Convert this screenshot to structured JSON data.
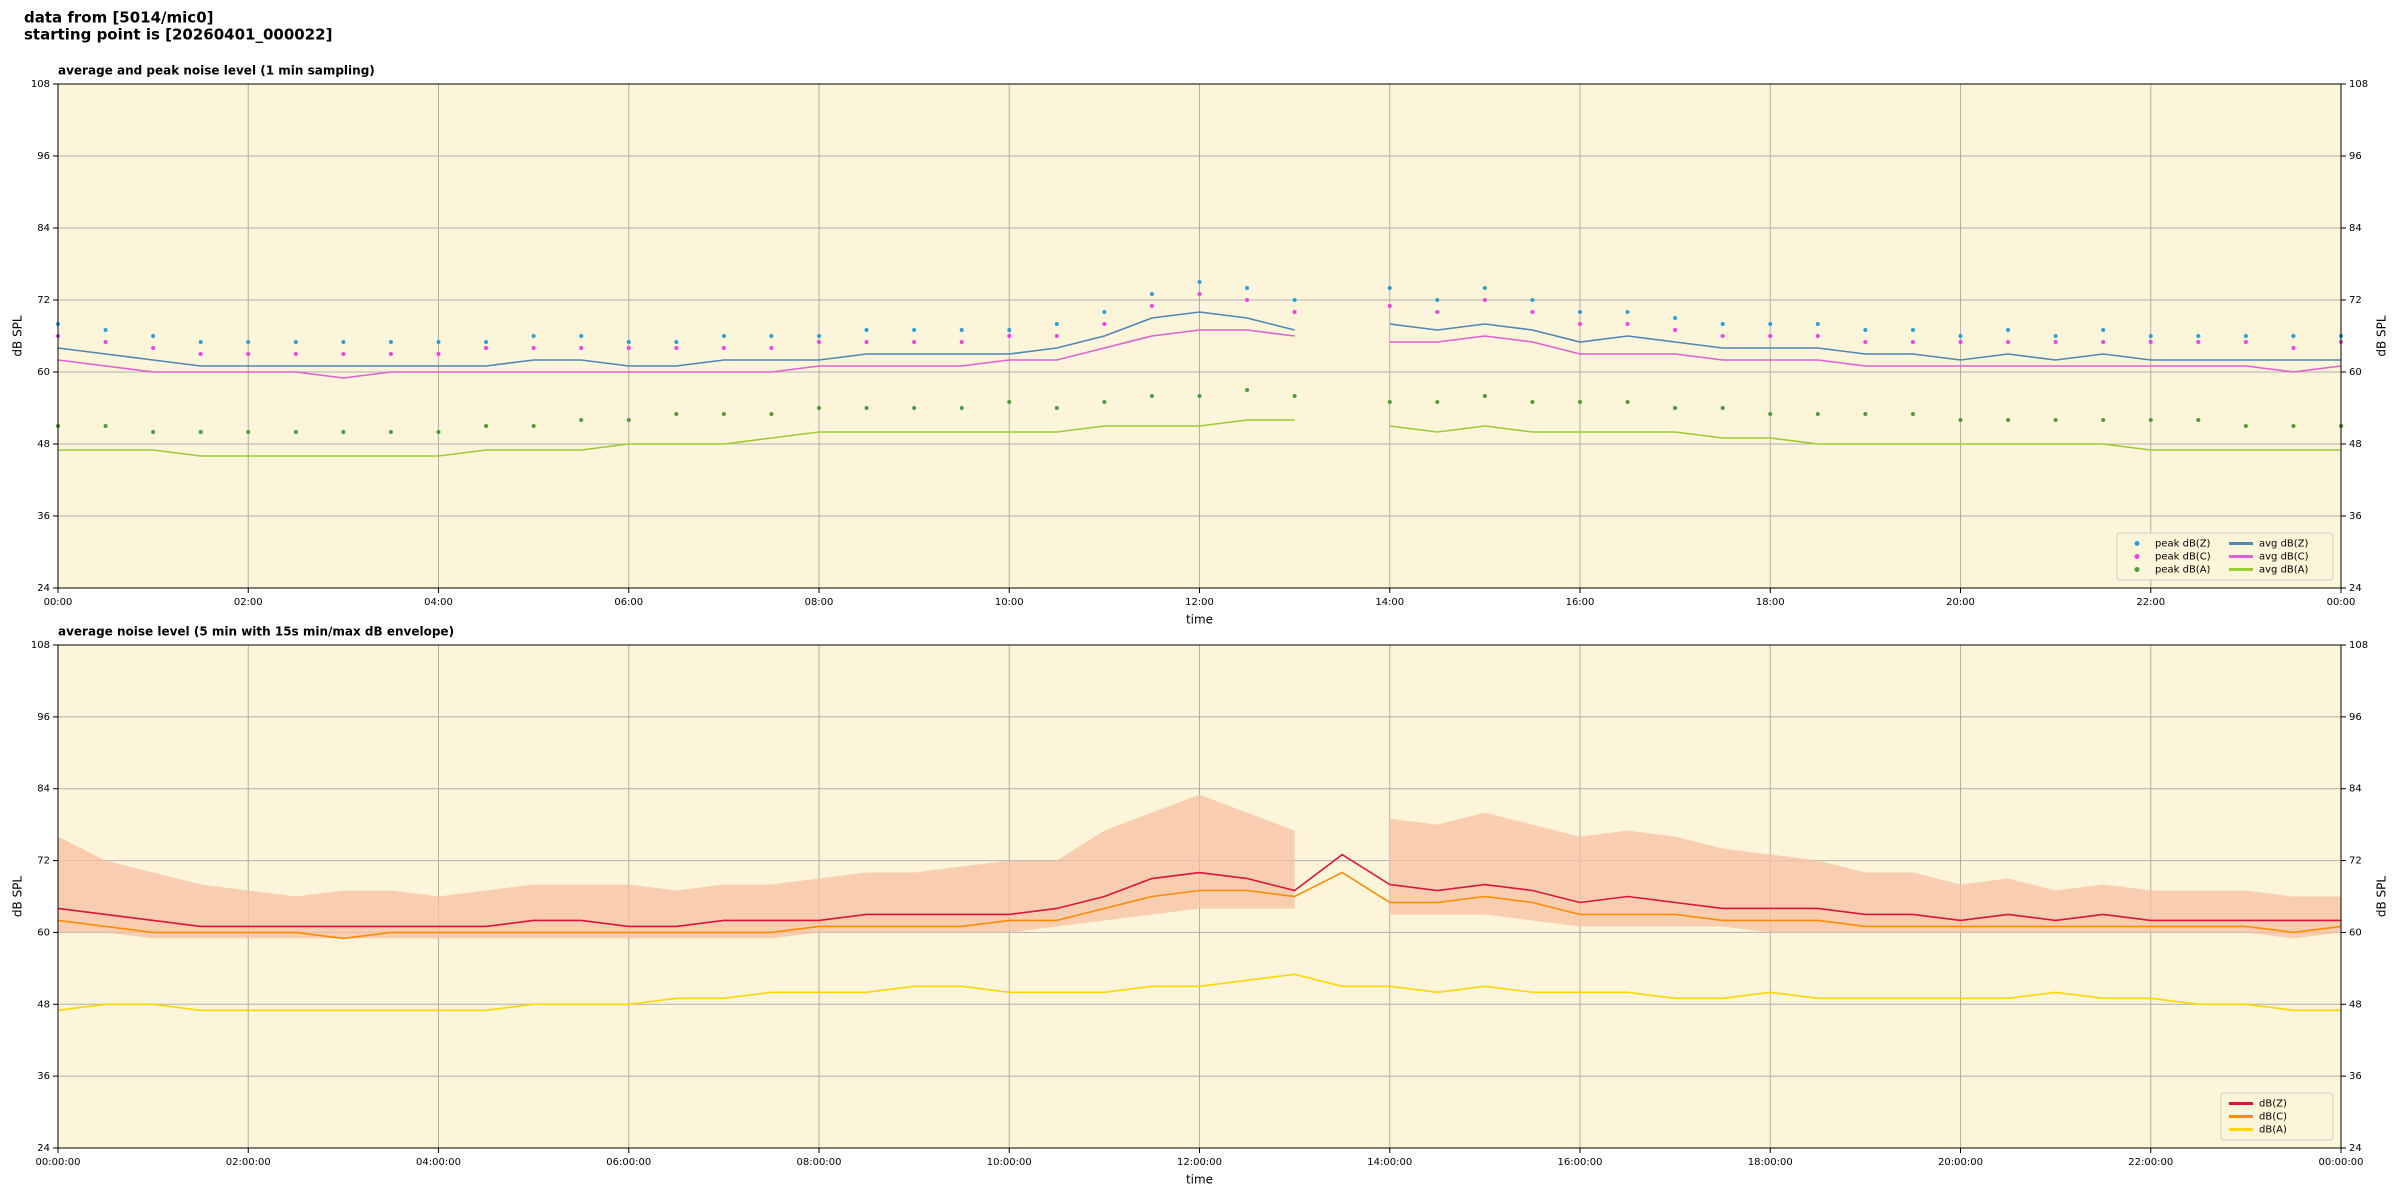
{
  "header": {
    "source": "data from [5014/mic0]",
    "start": "starting point is [20260401_000022]"
  },
  "chart_data": [
    {
      "type": "line",
      "title": "average and peak noise level (1 min sampling)",
      "xlabel": "time",
      "ylabel": "dB SPL",
      "facecolor": "#fdf5d9",
      "grid": true,
      "legend": "lower right",
      "legend_columns": 2,
      "xlim": [
        0,
        24
      ],
      "ylim": [
        24,
        108
      ],
      "xticks": [
        {
          "value": 0,
          "label": "00:00"
        },
        {
          "value": 2,
          "label": "02:00"
        },
        {
          "value": 4,
          "label": "04:00"
        },
        {
          "value": 6,
          "label": "06:00"
        },
        {
          "value": 8,
          "label": "08:00"
        },
        {
          "value": 10,
          "label": "10:00"
        },
        {
          "value": 12,
          "label": "12:00"
        },
        {
          "value": 14,
          "label": "14:00"
        },
        {
          "value": 16,
          "label": "16:00"
        },
        {
          "value": 18,
          "label": "18:00"
        },
        {
          "value": 20,
          "label": "20:00"
        },
        {
          "value": 22,
          "label": "22:00"
        },
        {
          "value": 24,
          "label": "00:00"
        }
      ],
      "yticks": [
        24,
        36,
        48,
        60,
        72,
        84,
        96,
        108
      ],
      "x": [
        0,
        0.5,
        1,
        1.5,
        2,
        2.5,
        3,
        3.5,
        4,
        4.5,
        5,
        5.5,
        6,
        6.5,
        7,
        7.5,
        8,
        8.5,
        9,
        9.5,
        10,
        10.5,
        11,
        11.5,
        12,
        12.5,
        13,
        13.5,
        14,
        14.5,
        15,
        15.5,
        16,
        16.5,
        17,
        17.5,
        18,
        18.5,
        19,
        19.5,
        20,
        20.5,
        21,
        21.5,
        22,
        22.5,
        23,
        23.5,
        24
      ],
      "series": [
        {
          "name": "peak dB(Z)",
          "mark": "dot",
          "color": "#2a9fd8",
          "values": [
            68,
            67,
            66,
            65,
            65,
            65,
            65,
            65,
            65,
            65,
            66,
            66,
            65,
            65,
            66,
            66,
            66,
            67,
            67,
            67,
            67,
            68,
            70,
            73,
            75,
            74,
            72,
            null,
            74,
            72,
            74,
            72,
            70,
            70,
            69,
            68,
            68,
            68,
            67,
            67,
            66,
            67,
            66,
            67,
            66,
            66,
            66,
            66,
            66
          ]
        },
        {
          "name": "peak dB(C)",
          "mark": "dot",
          "color": "#f040e8",
          "values": [
            66,
            65,
            64,
            63,
            63,
            63,
            63,
            63,
            63,
            64,
            64,
            64,
            64,
            64,
            64,
            64,
            65,
            65,
            65,
            65,
            66,
            66,
            68,
            71,
            73,
            72,
            70,
            null,
            71,
            70,
            72,
            70,
            68,
            68,
            67,
            66,
            66,
            66,
            65,
            65,
            65,
            65,
            65,
            65,
            65,
            65,
            65,
            64,
            65
          ]
        },
        {
          "name": "peak dB(A)",
          "mark": "dot",
          "color": "#4f9a3c",
          "values": [
            51,
            51,
            50,
            50,
            50,
            50,
            50,
            50,
            50,
            51,
            51,
            52,
            52,
            53,
            53,
            53,
            54,
            54,
            54,
            54,
            55,
            54,
            55,
            56,
            56,
            57,
            56,
            null,
            55,
            55,
            56,
            55,
            55,
            55,
            54,
            54,
            53,
            53,
            53,
            53,
            52,
            52,
            52,
            52,
            52,
            52,
            51,
            51,
            51
          ]
        },
        {
          "name": "avg dB(Z)",
          "mark": "line",
          "color": "#4f86b2",
          "values": [
            64,
            63,
            62,
            61,
            61,
            61,
            61,
            61,
            61,
            61,
            62,
            62,
            61,
            61,
            62,
            62,
            62,
            63,
            63,
            63,
            63,
            64,
            66,
            69,
            70,
            69,
            67,
            null,
            68,
            67,
            68,
            67,
            65,
            66,
            65,
            64,
            64,
            64,
            63,
            63,
            62,
            63,
            62,
            63,
            62,
            62,
            62,
            62,
            62
          ]
        },
        {
          "name": "avg dB(C)",
          "mark": "line",
          "color": "#e05fd2",
          "values": [
            62,
            61,
            60,
            60,
            60,
            60,
            59,
            60,
            60,
            60,
            60,
            60,
            60,
            60,
            60,
            60,
            61,
            61,
            61,
            61,
            62,
            62,
            64,
            66,
            67,
            67,
            66,
            null,
            65,
            65,
            66,
            65,
            63,
            63,
            63,
            62,
            62,
            62,
            61,
            61,
            61,
            61,
            61,
            61,
            61,
            61,
            61,
            60,
            61
          ]
        },
        {
          "name": "avg dB(A)",
          "mark": "line",
          "color": "#9acd32",
          "values": [
            47,
            47,
            47,
            46,
            46,
            46,
            46,
            46,
            46,
            47,
            47,
            47,
            48,
            48,
            48,
            49,
            50,
            50,
            50,
            50,
            50,
            50,
            51,
            51,
            51,
            52,
            52,
            null,
            51,
            50,
            51,
            50,
            50,
            50,
            50,
            49,
            49,
            48,
            48,
            48,
            48,
            48,
            48,
            48,
            47,
            47,
            47,
            47,
            47
          ]
        }
      ]
    },
    {
      "type": "line",
      "title": "average noise level (5 min with 15s min/max dB envelope)",
      "xlabel": "time",
      "ylabel": "dB SPL",
      "facecolor": "#fdf5d9",
      "grid": true,
      "legend": "lower right",
      "legend_columns": 1,
      "xlim": [
        0,
        24
      ],
      "ylim": [
        24,
        108
      ],
      "xticks": [
        {
          "value": 0,
          "label": "00:00:00"
        },
        {
          "value": 2,
          "label": "02:00:00"
        },
        {
          "value": 4,
          "label": "04:00:00"
        },
        {
          "value": 6,
          "label": "06:00:00"
        },
        {
          "value": 8,
          "label": "08:00:00"
        },
        {
          "value": 10,
          "label": "10:00:00"
        },
        {
          "value": 12,
          "label": "12:00:00"
        },
        {
          "value": 14,
          "label": "14:00:00"
        },
        {
          "value": 16,
          "label": "16:00:00"
        },
        {
          "value": 18,
          "label": "18:00:00"
        },
        {
          "value": 20,
          "label": "20:00:00"
        },
        {
          "value": 22,
          "label": "22:00:00"
        },
        {
          "value": 24,
          "label": "00:00:00"
        }
      ],
      "yticks": [
        24,
        36,
        48,
        60,
        72,
        84,
        96,
        108
      ],
      "x": [
        0,
        0.5,
        1,
        1.5,
        2,
        2.5,
        3,
        3.5,
        4,
        4.5,
        5,
        5.5,
        6,
        6.5,
        7,
        7.5,
        8,
        8.5,
        9,
        9.5,
        10,
        10.5,
        11,
        11.5,
        12,
        12.5,
        13,
        13.5,
        14,
        14.5,
        15,
        15.5,
        16,
        16.5,
        17,
        17.5,
        18,
        18.5,
        19,
        19.5,
        20,
        20.5,
        21,
        21.5,
        22,
        22.5,
        23,
        23.5,
        24
      ],
      "envelope": {
        "color": "#f7bfa2",
        "low": [
          60,
          60,
          59,
          59,
          59,
          59,
          59,
          59,
          59,
          59,
          59,
          59,
          59,
          59,
          59,
          59,
          60,
          60,
          60,
          60,
          60,
          61,
          62,
          63,
          64,
          64,
          64,
          null,
          63,
          63,
          63,
          62,
          61,
          61,
          61,
          61,
          60,
          60,
          60,
          60,
          60,
          60,
          60,
          60,
          60,
          60,
          60,
          59,
          60
        ],
        "high": [
          76,
          72,
          70,
          68,
          67,
          66,
          67,
          67,
          66,
          67,
          68,
          68,
          68,
          67,
          68,
          68,
          69,
          70,
          70,
          71,
          72,
          72,
          77,
          80,
          83,
          80,
          77,
          null,
          79,
          78,
          80,
          78,
          76,
          77,
          76,
          74,
          73,
          72,
          70,
          70,
          68,
          69,
          67,
          68,
          67,
          67,
          67,
          66,
          66
        ]
      },
      "series": [
        {
          "name": "dB(Z)",
          "mark": "line",
          "color": "#dc143c",
          "values": [
            64,
            63,
            62,
            61,
            61,
            61,
            61,
            61,
            61,
            61,
            62,
            62,
            61,
            61,
            62,
            62,
            62,
            63,
            63,
            63,
            63,
            64,
            66,
            69,
            70,
            69,
            67,
            73,
            68,
            67,
            68,
            67,
            65,
            66,
            65,
            64,
            64,
            64,
            63,
            63,
            62,
            63,
            62,
            63,
            62,
            62,
            62,
            62,
            62
          ]
        },
        {
          "name": "dB(C)",
          "mark": "line",
          "color": "#ff8c00",
          "values": [
            62,
            61,
            60,
            60,
            60,
            60,
            59,
            60,
            60,
            60,
            60,
            60,
            60,
            60,
            60,
            60,
            61,
            61,
            61,
            61,
            62,
            62,
            64,
            66,
            67,
            67,
            66,
            70,
            65,
            65,
            66,
            65,
            63,
            63,
            63,
            62,
            62,
            62,
            61,
            61,
            61,
            61,
            61,
            61,
            61,
            61,
            61,
            60,
            61
          ]
        },
        {
          "name": "dB(A)",
          "mark": "line",
          "color": "#ffd700",
          "values": [
            47,
            48,
            48,
            47,
            47,
            47,
            47,
            47,
            47,
            47,
            48,
            48,
            48,
            49,
            49,
            50,
            50,
            50,
            51,
            51,
            50,
            50,
            50,
            51,
            51,
            52,
            53,
            51,
            51,
            50,
            51,
            50,
            50,
            50,
            49,
            49,
            50,
            49,
            49,
            49,
            49,
            49,
            50,
            49,
            49,
            48,
            48,
            47,
            47
          ]
        }
      ]
    }
  ]
}
